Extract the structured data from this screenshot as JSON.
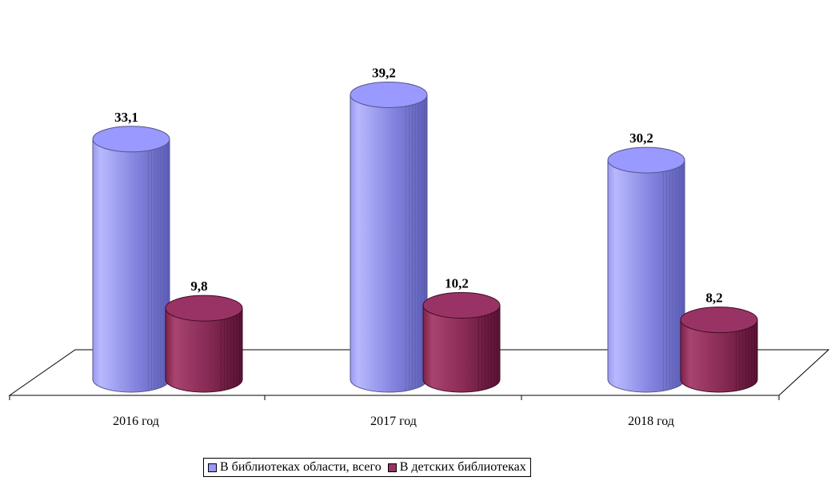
{
  "chart_data": {
    "type": "bar",
    "categories": [
      "2016 год",
      "2017 год",
      "2018 год"
    ],
    "series": [
      {
        "name": "В библиотеках области, всего",
        "values": [
          33.1,
          39.2,
          30.2
        ],
        "labels": [
          "33,1",
          "39,2",
          "30,2"
        ],
        "color": "#9999FF"
      },
      {
        "name": "В детских библиотеках",
        "values": [
          9.8,
          10.2,
          8.2
        ],
        "labels": [
          "9,8",
          "10,2",
          "8,2"
        ],
        "color": "#993366"
      }
    ],
    "bar_shape": "cylinder",
    "grid": false,
    "legend_position": "bottom"
  }
}
